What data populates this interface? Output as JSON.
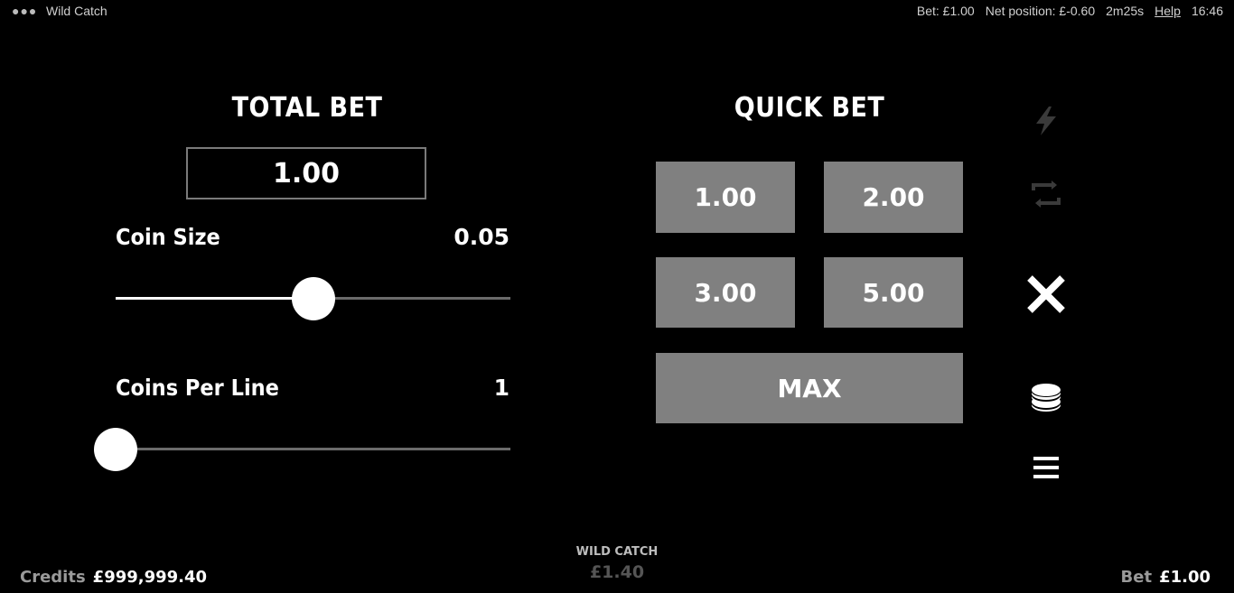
{
  "topbar": {
    "menu_glyph": "●●●",
    "game_name": "Wild Catch",
    "bet": "Bet: £1.00",
    "net_position": "Net position: £-0.60",
    "timer": "2m25s",
    "help": "Help",
    "clock": "16:46"
  },
  "total_bet": {
    "heading": "TOTAL BET",
    "value": "1.00"
  },
  "coin_size": {
    "label": "Coin Size",
    "value": "0.05",
    "slider_fraction": 0.5
  },
  "coins_per_line": {
    "label": "Coins Per Line",
    "value": "1",
    "slider_fraction": 0.0
  },
  "quick_bet": {
    "heading": "QUICK BET",
    "options": [
      "1.00",
      "2.00",
      "3.00",
      "5.00"
    ],
    "max_label": "MAX"
  },
  "side_icons": [
    "lightning-icon",
    "autoplay-icon",
    "close-icon",
    "coins-icon",
    "menu-icon"
  ],
  "footer": {
    "credits_label": "Credits",
    "credits_value": "£999,999.40",
    "game_title": "WILD CATCH",
    "win_amount": "£1.40",
    "bet_label": "Bet",
    "bet_value": "£1.00"
  },
  "colors": {
    "background": "#000000",
    "button": "#808080",
    "track": "#6b6b6b",
    "accent": "#ffffff"
  }
}
